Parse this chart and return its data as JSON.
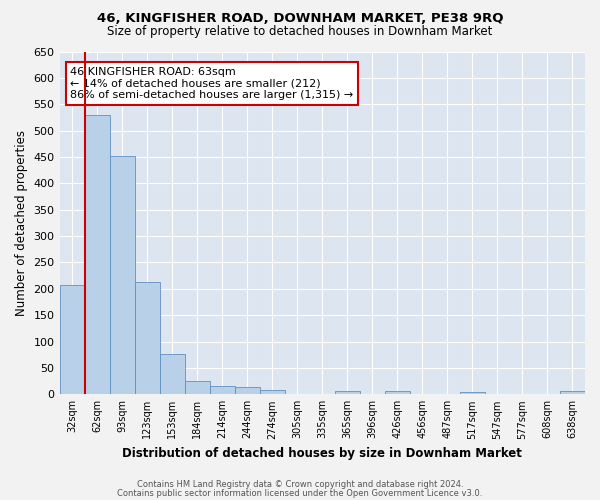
{
  "title1": "46, KINGFISHER ROAD, DOWNHAM MARKET, PE38 9RQ",
  "title2": "Size of property relative to detached houses in Downham Market",
  "xlabel": "Distribution of detached houses by size in Downham Market",
  "ylabel": "Number of detached properties",
  "footnote1": "Contains HM Land Registry data © Crown copyright and database right 2024.",
  "footnote2": "Contains public sector information licensed under the Open Government Licence v3.0.",
  "categories": [
    "32sqm",
    "62sqm",
    "93sqm",
    "123sqm",
    "153sqm",
    "184sqm",
    "214sqm",
    "244sqm",
    "274sqm",
    "305sqm",
    "335sqm",
    "365sqm",
    "396sqm",
    "426sqm",
    "456sqm",
    "487sqm",
    "517sqm",
    "547sqm",
    "577sqm",
    "608sqm",
    "638sqm"
  ],
  "values": [
    207,
    530,
    451,
    213,
    77,
    26,
    15,
    13,
    8,
    0,
    0,
    7,
    0,
    7,
    0,
    0,
    5,
    0,
    0,
    0,
    6
  ],
  "bar_color": "#b8d0e8",
  "bar_edge_color": "#6090c0",
  "background_color": "#dde6f0",
  "grid_color": "#ffffff",
  "fig_background": "#f2f2f2",
  "vline_color": "#cc0000",
  "annotation_text": "46 KINGFISHER ROAD: 63sqm\n← 14% of detached houses are smaller (212)\n86% of semi-detached houses are larger (1,315) →",
  "annotation_box_color": "#ffffff",
  "annotation_box_edge_color": "#cc0000",
  "ylim": [
    0,
    650
  ],
  "yticks": [
    0,
    50,
    100,
    150,
    200,
    250,
    300,
    350,
    400,
    450,
    500,
    550,
    600,
    650
  ]
}
